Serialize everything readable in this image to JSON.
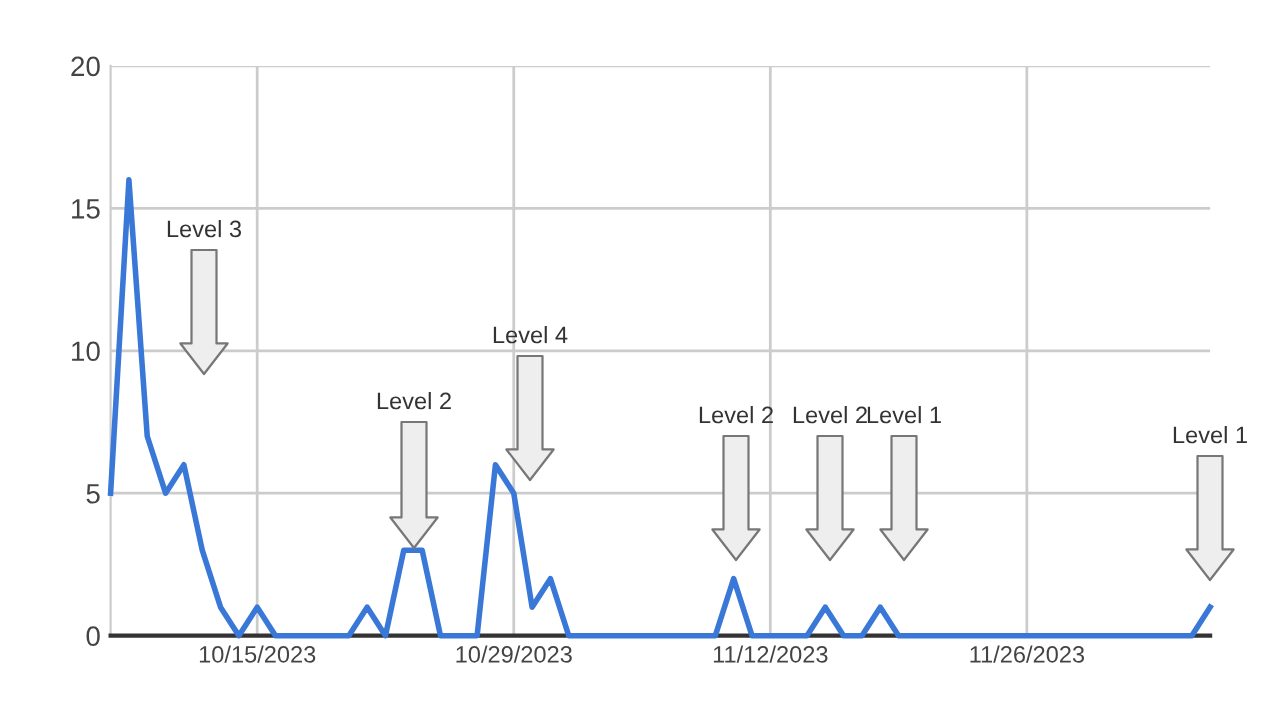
{
  "chart_data": {
    "type": "line",
    "x": [
      "2023-10-07",
      "2023-10-08",
      "2023-10-09",
      "2023-10-10",
      "2023-10-11",
      "2023-10-12",
      "2023-10-13",
      "2023-10-14",
      "2023-10-15",
      "2023-10-16",
      "2023-10-17",
      "2023-10-18",
      "2023-10-19",
      "2023-10-20",
      "2023-10-21",
      "2023-10-22",
      "2023-10-23",
      "2023-10-24",
      "2023-10-25",
      "2023-10-26",
      "2023-10-27",
      "2023-10-28",
      "2023-10-29",
      "2023-10-30",
      "2023-10-31",
      "2023-11-01",
      "2023-11-02",
      "2023-11-03",
      "2023-11-04",
      "2023-11-05",
      "2023-11-06",
      "2023-11-07",
      "2023-11-08",
      "2023-11-09",
      "2023-11-10",
      "2023-11-11",
      "2023-11-12",
      "2023-11-13",
      "2023-11-14",
      "2023-11-15",
      "2023-11-16",
      "2023-11-17",
      "2023-11-18",
      "2023-11-19",
      "2023-11-20",
      "2023-11-21",
      "2023-11-22",
      "2023-11-23",
      "2023-11-24",
      "2023-11-25",
      "2023-11-26",
      "2023-11-27",
      "2023-11-28",
      "2023-11-29",
      "2023-11-30",
      "2023-12-01",
      "2023-12-02",
      "2023-12-03",
      "2023-12-04",
      "2023-12-05",
      "2023-12-06"
    ],
    "series": [
      {
        "color": "#3a78d8",
        "values": [
          5,
          16,
          7,
          5,
          6,
          3,
          1,
          0,
          1,
          0,
          0,
          0,
          0,
          0,
          1,
          0,
          3,
          3,
          0,
          0,
          0,
          6,
          5,
          1,
          2,
          0,
          0,
          0,
          0,
          0,
          0,
          0,
          0,
          0,
          2,
          0,
          0,
          0,
          0,
          1,
          0,
          0,
          1,
          0,
          0,
          0,
          0,
          0,
          0,
          0,
          0,
          0,
          0,
          0,
          0,
          0,
          0,
          0,
          0,
          0,
          1
        ]
      }
    ],
    "xlim": [
      "2023-10-07",
      "2023-12-06"
    ],
    "xticks": [
      {
        "value": "2023-10-15",
        "label": "10/15/2023"
      },
      {
        "value": "2023-10-29",
        "label": "10/29/2023"
      },
      {
        "value": "2023-11-12",
        "label": "11/12/2023"
      },
      {
        "value": "2023-11-26",
        "label": "11/26/2023"
      }
    ],
    "ylim": [
      0,
      20
    ],
    "yticks": [
      0,
      5,
      10,
      15,
      20
    ],
    "grid": true,
    "marker": "none",
    "line_style": "solid",
    "annotations": [
      "Level 3",
      "Level 2",
      "Level 4",
      "Level 2",
      "Level 2",
      "Level 1",
      "Level 1"
    ]
  }
}
